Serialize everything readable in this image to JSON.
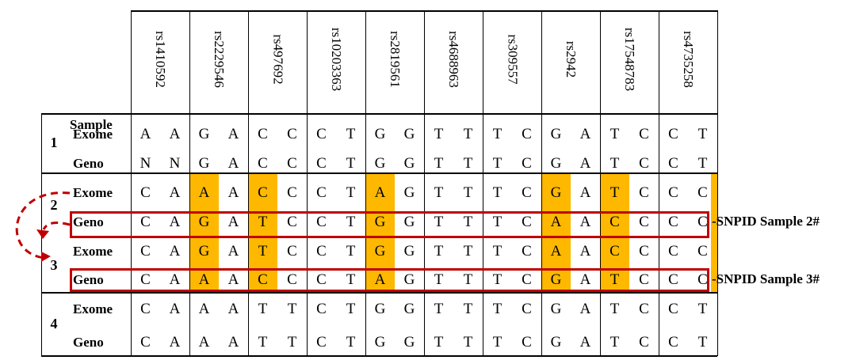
{
  "header": {
    "sample_label": "Sample"
  },
  "snps": [
    "rs1410592",
    "rs2229546",
    "rs497692",
    "rs10203363",
    "rs2819561",
    "rs4688963",
    "rs309557",
    "rs2942",
    "rs17548783",
    "rs4735258"
  ],
  "rows": [
    {
      "sample": "1",
      "type": "Exome",
      "alleles": [
        "A",
        "A",
        "G",
        "A",
        "C",
        "C",
        "C",
        "T",
        "G",
        "G",
        "T",
        "T",
        "T",
        "C",
        "G",
        "A",
        "T",
        "C",
        "C",
        "T"
      ],
      "highlight": []
    },
    {
      "sample": "",
      "type": "Geno",
      "alleles": [
        "N",
        "N",
        "G",
        "A",
        "C",
        "C",
        "C",
        "T",
        "G",
        "G",
        "T",
        "T",
        "T",
        "C",
        "G",
        "A",
        "T",
        "C",
        "C",
        "T"
      ],
      "highlight": []
    },
    {
      "sample": "2",
      "type": "Exome",
      "alleles": [
        "C",
        "A",
        "A",
        "A",
        "C",
        "C",
        "C",
        "T",
        "A",
        "G",
        "T",
        "T",
        "T",
        "C",
        "G",
        "A",
        "T",
        "C",
        "C",
        "C"
      ],
      "highlight": [
        2,
        4,
        8,
        14,
        16
      ]
    },
    {
      "sample": "",
      "type": "Geno",
      "alleles": [
        "C",
        "A",
        "G",
        "A",
        "T",
        "C",
        "C",
        "T",
        "G",
        "G",
        "T",
        "T",
        "T",
        "C",
        "A",
        "A",
        "C",
        "C",
        "C",
        "C"
      ],
      "highlight": [
        2,
        4,
        8,
        14,
        16
      ]
    },
    {
      "sample": "3",
      "type": "Exome",
      "alleles": [
        "C",
        "A",
        "G",
        "A",
        "T",
        "C",
        "C",
        "T",
        "G",
        "G",
        "T",
        "T",
        "T",
        "C",
        "A",
        "A",
        "C",
        "C",
        "C",
        "C"
      ],
      "highlight": [
        2,
        4,
        8,
        14,
        16
      ]
    },
    {
      "sample": "",
      "type": "Geno",
      "alleles": [
        "C",
        "A",
        "A",
        "A",
        "C",
        "C",
        "C",
        "T",
        "A",
        "G",
        "T",
        "T",
        "T",
        "C",
        "G",
        "A",
        "T",
        "C",
        "C",
        "C"
      ],
      "highlight": [
        2,
        4,
        8,
        14,
        16
      ]
    },
    {
      "sample": "4",
      "type": "Exome",
      "alleles": [
        "C",
        "A",
        "A",
        "A",
        "T",
        "T",
        "C",
        "T",
        "G",
        "G",
        "T",
        "T",
        "T",
        "C",
        "G",
        "A",
        "T",
        "C",
        "C",
        "T"
      ],
      "highlight": []
    },
    {
      "sample": "",
      "type": "Geno",
      "alleles": [
        "C",
        "A",
        "A",
        "A",
        "T",
        "T",
        "C",
        "T",
        "G",
        "G",
        "T",
        "T",
        "T",
        "C",
        "G",
        "A",
        "T",
        "C",
        "C",
        "T"
      ],
      "highlight": []
    }
  ],
  "callouts": [
    "-SNPID Sample 2#",
    "-SNPID Sample 3#"
  ],
  "colors": {
    "highlight": "#ffb800",
    "box": "#c00000"
  }
}
